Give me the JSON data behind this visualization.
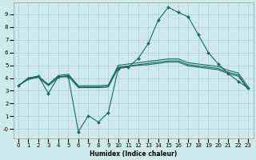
{
  "xlabel": "Humidex (Indice chaleur)",
  "bg_color": "#ceeaea",
  "grid_color": "#aacfcf",
  "line_color": "#1a6b60",
  "xlim": [
    -0.5,
    23.5
  ],
  "ylim": [
    -0.7,
    9.9
  ],
  "xticks": [
    0,
    1,
    2,
    3,
    4,
    5,
    6,
    7,
    8,
    9,
    10,
    11,
    12,
    13,
    14,
    15,
    16,
    17,
    18,
    19,
    20,
    21,
    22,
    23
  ],
  "yticks": [
    0,
    1,
    2,
    3,
    4,
    5,
    6,
    7,
    8,
    9
  ],
  "ytick_labels": [
    "-0",
    "1",
    "2",
    "3",
    "4",
    "5",
    "6",
    "7",
    "8",
    "9"
  ],
  "line1_x": [
    0,
    1,
    2,
    3,
    4,
    5,
    6,
    7,
    8,
    9,
    10,
    11,
    12,
    13,
    14,
    15,
    16,
    17,
    18,
    19,
    20,
    21,
    22,
    23
  ],
  "line1_y": [
    3.4,
    4.0,
    4.15,
    2.8,
    4.1,
    4.1,
    -0.2,
    1.05,
    0.55,
    1.3,
    4.75,
    4.85,
    5.55,
    6.7,
    8.55,
    9.55,
    9.15,
    8.8,
    7.4,
    6.0,
    5.1,
    4.35,
    3.75,
    3.2
  ],
  "line2_x": [
    0,
    1,
    2,
    3,
    4,
    5,
    6,
    7,
    8,
    9,
    10,
    11,
    12,
    13,
    14,
    15,
    16,
    17,
    18,
    19,
    20,
    21,
    22,
    23
  ],
  "line2_y": [
    3.4,
    4.0,
    4.15,
    3.5,
    4.2,
    4.3,
    3.4,
    3.4,
    3.4,
    3.45,
    5.0,
    5.1,
    5.2,
    5.3,
    5.4,
    5.5,
    5.5,
    5.2,
    5.1,
    5.0,
    4.9,
    4.6,
    4.4,
    3.3
  ],
  "line3_x": [
    0,
    1,
    2,
    3,
    4,
    5,
    6,
    7,
    8,
    9,
    10,
    11,
    12,
    13,
    14,
    15,
    16,
    17,
    18,
    19,
    20,
    21,
    22,
    23
  ],
  "line3_y": [
    3.4,
    3.95,
    4.1,
    3.45,
    4.1,
    4.2,
    3.3,
    3.3,
    3.3,
    3.35,
    4.85,
    4.95,
    5.05,
    5.15,
    5.25,
    5.35,
    5.35,
    5.05,
    4.95,
    4.85,
    4.75,
    4.45,
    4.25,
    3.15
  ],
  "line4_x": [
    0,
    1,
    2,
    3,
    4,
    5,
    6,
    7,
    8,
    9,
    10,
    11,
    12,
    13,
    14,
    15,
    16,
    17,
    18,
    19,
    20,
    21,
    22,
    23
  ],
  "line4_y": [
    3.4,
    3.9,
    4.05,
    3.4,
    4.05,
    4.15,
    3.25,
    3.25,
    3.25,
    3.3,
    4.8,
    4.9,
    5.0,
    5.05,
    5.15,
    5.25,
    5.25,
    4.95,
    4.85,
    4.75,
    4.65,
    4.35,
    4.15,
    3.1
  ]
}
